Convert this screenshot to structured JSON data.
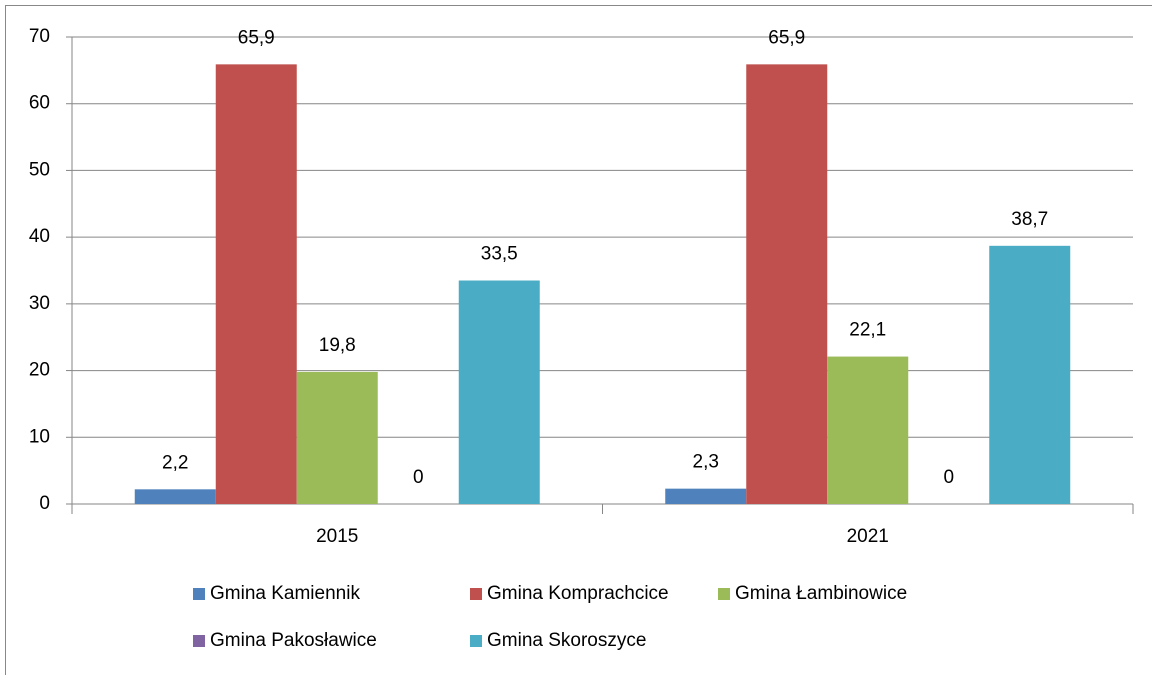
{
  "chart_data": {
    "type": "bar",
    "categories": [
      "2015",
      "2021"
    ],
    "series": [
      {
        "name": "Gmina Kamiennik",
        "color": "#4f81bd",
        "values": [
          2.2,
          2.3
        ],
        "value_labels": [
          "2,2",
          "2,3"
        ]
      },
      {
        "name": "Gmina Komprachcice",
        "color": "#c0504d",
        "values": [
          65.9,
          65.9
        ],
        "value_labels": [
          "65,9",
          "65,9"
        ]
      },
      {
        "name": "Gmina Łambinowice",
        "color": "#9bbb59",
        "values": [
          19.8,
          22.1
        ],
        "value_labels": [
          "19,8",
          "22,1"
        ]
      },
      {
        "name": "Gmina Pakosławice",
        "color": "#8064a2",
        "values": [
          0,
          0
        ],
        "value_labels": [
          "0",
          "0"
        ]
      },
      {
        "name": "Gmina Skoroszyce",
        "color": "#4bacc6",
        "values": [
          33.5,
          38.7
        ],
        "value_labels": [
          "33,5",
          "38,7"
        ]
      }
    ],
    "ylim": [
      0,
      70
    ],
    "yticks": [
      0,
      10,
      20,
      30,
      40,
      50,
      60,
      70
    ],
    "grid": true,
    "legend": "bottom"
  }
}
